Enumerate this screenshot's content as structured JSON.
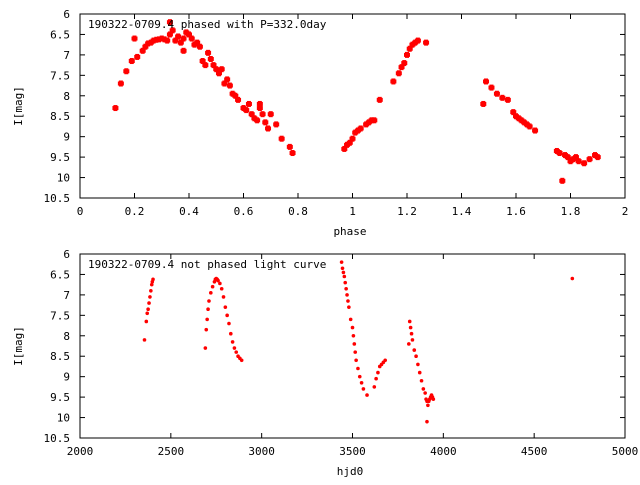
{
  "colors": {
    "points": "#ff0000",
    "axes": "#000000",
    "background": "#ffffff"
  },
  "chart_data": [
    {
      "type": "scatter",
      "title": "190322-0709.4 phased with P=332.0day",
      "xlabel": "phase",
      "ylabel": "I[mag]",
      "xlim": [
        0,
        2
      ],
      "ylim": [
        10.5,
        6
      ],
      "y_inverted": true,
      "grid": false,
      "x_ticks": [
        "0",
        "0.2",
        "0.4",
        "0.6",
        "0.8",
        "1",
        "1.2",
        "1.4",
        "1.6",
        "1.8",
        "2"
      ],
      "y_ticks": [
        "6",
        "6.5",
        "7",
        "7.5",
        "8",
        "8.5",
        "9",
        "9.5",
        "10",
        "10.5"
      ],
      "marker": "filled-circle-large",
      "series": [
        {
          "x": [
            0.13,
            0.15,
            0.17,
            0.19,
            0.2,
            0.21,
            0.23,
            0.24,
            0.25,
            0.26,
            0.27,
            0.28,
            0.29,
            0.3,
            0.31,
            0.32,
            0.33,
            0.33,
            0.34,
            0.35,
            0.36,
            0.37,
            0.38,
            0.38,
            0.39,
            0.4,
            0.41,
            0.42,
            0.43,
            0.44,
            0.45,
            0.46,
            0.47,
            0.48,
            0.49,
            0.5,
            0.51,
            0.52,
            0.53,
            0.54,
            0.55,
            0.56,
            0.57,
            0.58,
            0.6,
            0.61,
            0.62,
            0.63,
            0.64,
            0.65,
            0.66,
            0.66,
            0.67,
            0.68,
            0.69,
            0.7,
            0.72,
            0.74,
            0.77,
            0.78,
            0.97,
            0.98,
            0.99,
            1.0,
            1.01,
            1.02,
            1.03,
            1.05,
            1.06,
            1.07,
            1.08,
            1.1,
            1.15,
            1.17,
            1.18,
            1.19,
            1.2,
            1.21,
            1.22,
            1.23,
            1.24,
            1.27,
            1.48,
            1.49,
            1.51,
            1.53,
            1.55,
            1.57,
            1.59,
            1.6,
            1.61,
            1.62,
            1.63,
            1.64,
            1.65,
            1.67,
            1.75,
            1.76,
            1.77,
            1.78,
            1.79,
            1.8,
            1.81,
            1.82,
            1.83,
            1.85,
            1.87,
            1.89,
            1.9
          ],
          "y": [
            8.3,
            7.7,
            7.4,
            7.15,
            6.6,
            7.05,
            6.9,
            6.8,
            6.72,
            6.7,
            6.65,
            6.63,
            6.62,
            6.6,
            6.62,
            6.65,
            6.2,
            6.5,
            6.4,
            6.65,
            6.55,
            6.7,
            6.9,
            6.6,
            6.45,
            6.5,
            6.6,
            6.75,
            6.7,
            6.8,
            7.15,
            7.25,
            6.95,
            7.1,
            7.25,
            7.35,
            7.45,
            7.35,
            7.7,
            7.6,
            7.75,
            7.95,
            8.0,
            8.1,
            8.3,
            8.35,
            8.2,
            8.45,
            8.55,
            8.6,
            8.3,
            8.2,
            8.45,
            8.65,
            8.8,
            8.45,
            8.7,
            9.05,
            9.25,
            9.4,
            9.3,
            9.2,
            9.15,
            9.05,
            8.9,
            8.85,
            8.8,
            8.7,
            8.65,
            8.6,
            8.6,
            8.1,
            7.65,
            7.45,
            7.3,
            7.2,
            7.0,
            6.85,
            6.75,
            6.7,
            6.65,
            6.7,
            8.2,
            7.65,
            7.8,
            7.95,
            8.05,
            8.1,
            8.4,
            8.5,
            8.55,
            8.6,
            8.65,
            8.7,
            8.75,
            8.85,
            9.35,
            9.4,
            10.08,
            9.45,
            9.5,
            9.6,
            9.55,
            9.5,
            9.6,
            9.65,
            9.55,
            9.45,
            9.5
          ]
        }
      ]
    },
    {
      "type": "scatter",
      "title": "190322-0709.4 not phased light curve",
      "xlabel": "hjd0",
      "ylabel": "I[mag]",
      "xlim": [
        2000,
        5000
      ],
      "ylim": [
        10.5,
        6
      ],
      "y_inverted": true,
      "grid": false,
      "x_ticks": [
        "2000",
        "2500",
        "3000",
        "3500",
        "4000",
        "4500",
        "5000"
      ],
      "y_ticks": [
        "6",
        "6.5",
        "7",
        "7.5",
        "8",
        "8.5",
        "9",
        "9.5",
        "10",
        "10.5"
      ],
      "marker": "dot-small",
      "series": [
        {
          "x": [
            2355,
            2365,
            2370,
            2375,
            2380,
            2385,
            2390,
            2395,
            2398,
            2402,
            2690,
            2695,
            2700,
            2705,
            2710,
            2720,
            2730,
            2740,
            2745,
            2750,
            2755,
            2760,
            2770,
            2780,
            2790,
            2800,
            2810,
            2820,
            2830,
            2840,
            2850,
            2860,
            2870,
            2880,
            2890,
            3440,
            3445,
            3450,
            3455,
            3460,
            3465,
            3470,
            3475,
            3480,
            3490,
            3500,
            3505,
            3510,
            3515,
            3520,
            3530,
            3540,
            3550,
            3560,
            3580,
            3620,
            3630,
            3640,
            3650,
            3660,
            3670,
            3680,
            3810,
            3815,
            3820,
            3825,
            3830,
            3840,
            3850,
            3860,
            3870,
            3880,
            3890,
            3900,
            3905,
            3910,
            3915,
            3920,
            3925,
            3930,
            3935,
            3940,
            3945,
            4710
          ],
          "y": [
            8.1,
            7.65,
            7.45,
            7.35,
            7.2,
            7.05,
            6.9,
            6.75,
            6.68,
            6.62,
            8.3,
            7.85,
            7.6,
            7.35,
            7.15,
            6.95,
            6.8,
            6.68,
            6.62,
            6.6,
            6.62,
            6.65,
            6.72,
            6.85,
            7.05,
            7.3,
            7.5,
            7.7,
            7.95,
            8.15,
            8.3,
            8.4,
            8.5,
            8.55,
            8.6,
            6.2,
            6.35,
            6.45,
            6.55,
            6.7,
            6.85,
            7.0,
            7.15,
            7.3,
            7.6,
            7.8,
            8.0,
            8.2,
            8.4,
            8.6,
            8.8,
            9.0,
            9.15,
            9.3,
            9.45,
            9.25,
            9.05,
            8.9,
            8.75,
            8.7,
            8.65,
            8.6,
            8.2,
            7.65,
            7.8,
            7.95,
            8.1,
            8.35,
            8.5,
            8.7,
            8.9,
            9.1,
            9.3,
            9.4,
            9.55,
            9.6,
            9.7,
            9.6,
            9.55,
            9.5,
            9.45,
            9.5,
            9.55,
            6.6
          ],
          "extra_point": {
            "x": 3910,
            "y": 10.1
          }
        }
      ]
    }
  ]
}
